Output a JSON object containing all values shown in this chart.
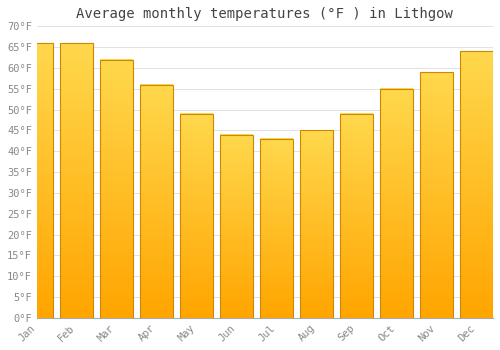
{
  "months": [
    "Jan",
    "Feb",
    "Mar",
    "Apr",
    "May",
    "Jun",
    "Jul",
    "Aug",
    "Sep",
    "Oct",
    "Nov",
    "Dec"
  ],
  "values": [
    66,
    66,
    62,
    56,
    49,
    44,
    43,
    45,
    49,
    55,
    59,
    64
  ],
  "bar_color_top": "#FFD84D",
  "bar_color_bottom": "#FFA500",
  "bar_edge_color": "#CC8800",
  "title": "Average monthly temperatures (°F ) in Lithgow",
  "ylim": [
    0,
    70
  ],
  "yticks": [
    0,
    5,
    10,
    15,
    20,
    25,
    30,
    35,
    40,
    45,
    50,
    55,
    60,
    65,
    70
  ],
  "ytick_labels": [
    "0°F",
    "5°F",
    "10°F",
    "15°F",
    "20°F",
    "25°F",
    "30°F",
    "35°F",
    "40°F",
    "45°F",
    "50°F",
    "55°F",
    "60°F",
    "65°F",
    "70°F"
  ],
  "background_color": "#ffffff",
  "grid_color": "#dddddd",
  "title_fontsize": 10,
  "tick_fontsize": 7.5,
  "title_color": "#444444",
  "tick_color": "#888888",
  "font_family": "monospace",
  "bar_width": 0.82
}
